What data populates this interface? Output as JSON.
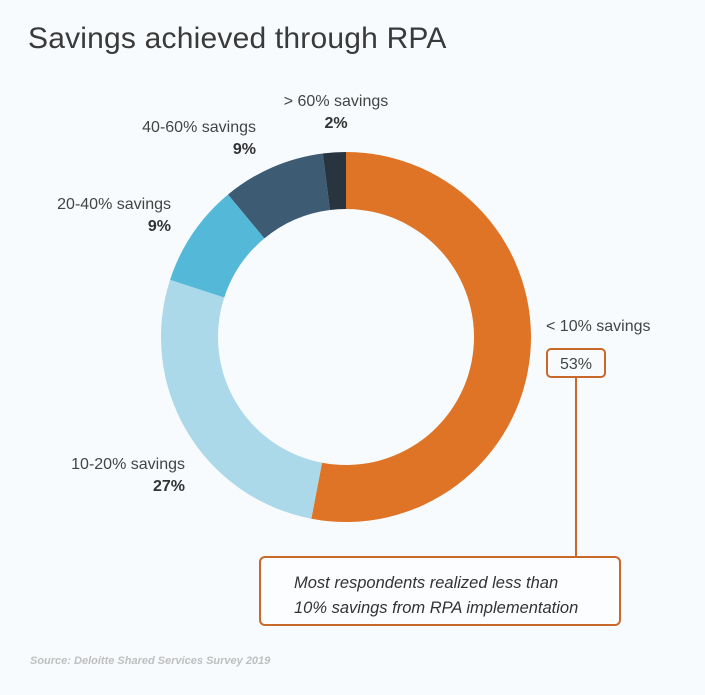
{
  "chart_data": {
    "type": "pie",
    "title": "Savings achieved through RPA",
    "categories": [
      "< 10% savings",
      "10-20% savings",
      "20-40% savings",
      "40-60% savings",
      "> 60% savings"
    ],
    "values": [
      53,
      27,
      9,
      9,
      2
    ],
    "value_labels": [
      "53%",
      "27%",
      "9%",
      "9%",
      "2%"
    ],
    "colors": [
      "#df7427",
      "#acd9e9",
      "#54b8d9",
      "#3e5b74",
      "#28343f"
    ],
    "donut": true,
    "start": "top, clockwise",
    "annotation": {
      "line1": "Most respondents realized less than",
      "line2": "10% savings from RPA implementation"
    },
    "source": "Source: Deloitte Shared Services Survey 2019"
  }
}
